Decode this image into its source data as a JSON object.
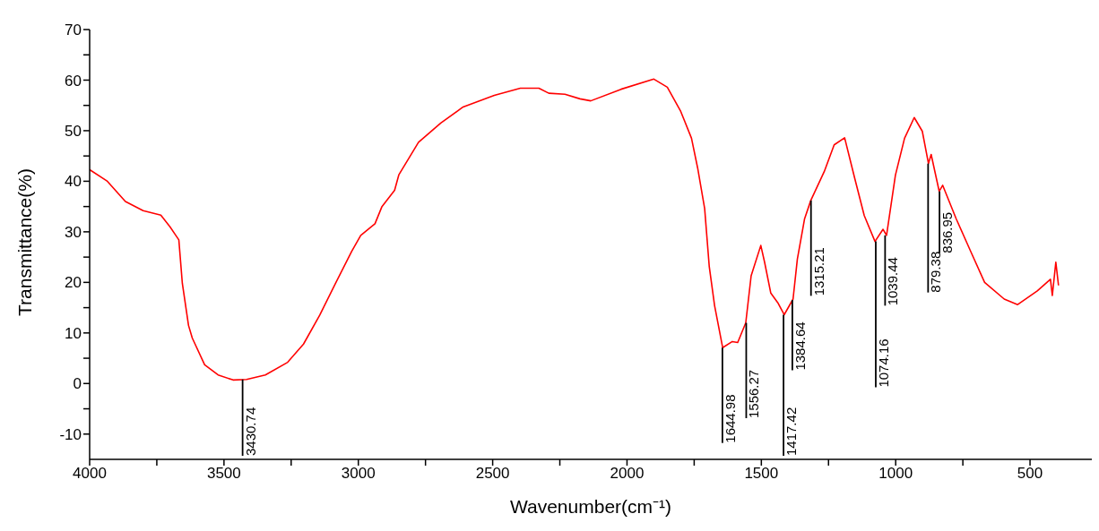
{
  "chart_data": {
    "type": "line",
    "xlabel": "Wavenumber(cm⁻¹)",
    "ylabel": "Transmittance(%)",
    "xlim": [
      4000,
      270
    ],
    "ylim": [
      -15,
      70
    ],
    "xticks": [
      4000,
      {
        "value": 3750,
        "label": null
      },
      3500,
      {
        "value": 3250,
        "label": null
      },
      3000,
      {
        "value": 2750,
        "label": null
      },
      2500,
      {
        "value": 2250,
        "label": null
      },
      2000,
      {
        "value": 1750,
        "label": null
      },
      1500,
      {
        "value": 1250,
        "label": null
      },
      1000,
      {
        "value": 750,
        "label": null
      },
      500
    ],
    "yticks": [
      -10,
      {
        "value": -5,
        "label": null
      },
      0,
      {
        "value": 5,
        "label": null
      },
      10,
      {
        "value": 15,
        "label": null
      },
      20,
      {
        "value": 25,
        "label": null
      },
      30,
      {
        "value": 35,
        "label": null
      },
      40,
      {
        "value": 45,
        "label": null
      },
      50,
      {
        "value": 55,
        "label": null
      },
      60,
      {
        "value": 65,
        "label": null
      },
      70
    ],
    "marker": "none",
    "line_style": "solid",
    "x": [
      4000,
      3934,
      3867,
      3801,
      3735,
      3701,
      3668,
      3655,
      3632,
      3618,
      3572,
      3522,
      3466,
      3416,
      3346,
      3263,
      3204,
      3144,
      3084,
      3025,
      2991,
      2938,
      2912,
      2865,
      2849,
      2776,
      2693,
      2610,
      2494,
      2397,
      2328,
      2291,
      2231,
      2175,
      2135,
      2022,
      1900,
      1850,
      1800,
      1760,
      1737,
      1711,
      1694,
      1674,
      1644,
      1608,
      1588,
      1558,
      1538,
      1502,
      1488,
      1465,
      1439,
      1415,
      1382,
      1366,
      1339,
      1316,
      1266,
      1229,
      1190,
      1153,
      1117,
      1077,
      1047,
      1034,
      1001,
      967,
      931,
      901,
      878,
      868,
      838,
      825,
      775,
      719,
      669,
      596,
      546,
      473,
      424,
      417,
      404,
      394
    ],
    "series": [
      {
        "color": "#ff0000",
        "values": [
          42.3,
          40,
          36,
          34.2,
          33.3,
          31,
          28.4,
          19.8,
          11.5,
          9.0,
          3.7,
          1.7,
          0.7,
          0.8,
          1.7,
          4.2,
          7.8,
          13.5,
          19.9,
          26.1,
          29.3,
          31.6,
          35.0,
          38.2,
          41.3,
          47.7,
          51.5,
          54.7,
          57.0,
          58.4,
          58.4,
          57.4,
          57.2,
          56.3,
          55.9,
          58.2,
          60.2,
          58.6,
          53.8,
          48.5,
          42.6,
          34.6,
          23.2,
          15.4,
          7.1,
          8.3,
          8.1,
          12.0,
          21.3,
          27.3,
          24.0,
          17.9,
          16.0,
          13.6,
          16.7,
          24.6,
          32.6,
          36.2,
          41.9,
          47.2,
          48.6,
          40.7,
          33.2,
          28.1,
          30.5,
          29.3,
          41.2,
          48.5,
          52.6,
          49.9,
          43.5,
          45.3,
          38.0,
          39.2,
          32.6,
          25.9,
          20.0,
          16.7,
          15.6,
          18.3,
          20.6,
          17.4,
          24.0,
          19.4
        ]
      }
    ],
    "annotations": [
      {
        "text": "3430.74",
        "x": 3430.74,
        "y": 0.8
      },
      {
        "text": "1644.98",
        "x": 1644.98,
        "y": 7.1
      },
      {
        "text": "1556.27",
        "x": 1556.27,
        "y": 12.0
      },
      {
        "text": "1417.42",
        "x": 1417.42,
        "y": 13.6
      },
      {
        "text": "1384.64",
        "x": 1384.64,
        "y": 16.5
      },
      {
        "text": "1315.21",
        "x": 1315.21,
        "y": 36.2
      },
      {
        "text": "1074.16",
        "x": 1074.16,
        "y": 28.1
      },
      {
        "text": "1039.44",
        "x": 1039.44,
        "y": 29.3
      },
      {
        "text": "879.38",
        "x": 879.38,
        "y": 43.5
      },
      {
        "text": "836.95",
        "x": 836.95,
        "y": 38.0
      }
    ]
  }
}
